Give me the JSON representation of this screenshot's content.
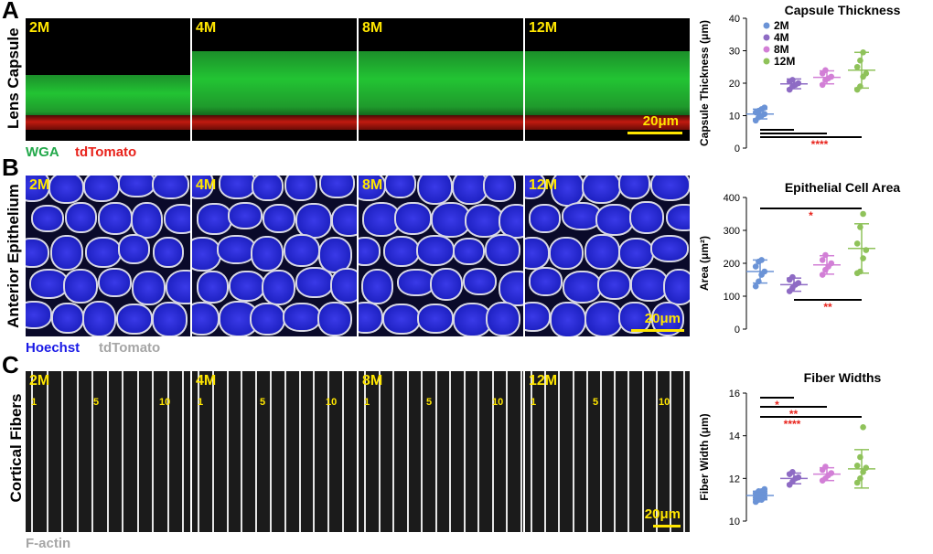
{
  "panels": {
    "A": {
      "letter": "A",
      "row_label": "Lens Capsule",
      "ages": [
        "2M",
        "4M",
        "8M",
        "12M"
      ],
      "scale_bar": "20μm",
      "stain_labels": [
        {
          "text": "WGA",
          "color": "#22a84a"
        },
        {
          "text": "tdTomato",
          "color": "#e8221b"
        }
      ]
    },
    "B": {
      "letter": "B",
      "row_label": "Anterior Epithelium",
      "ages": [
        "2M",
        "4M",
        "8M",
        "12M"
      ],
      "scale_bar": "20μm",
      "stain_labels": [
        {
          "text": "Hoechst",
          "color": "#1a1ae6"
        },
        {
          "text": "tdTomato",
          "color": "#a6a6a6"
        }
      ]
    },
    "C": {
      "letter": "C",
      "row_label": "Cortical Fibers",
      "ages": [
        "2M",
        "4M",
        "8M",
        "12M"
      ],
      "fiber_numbers": [
        "1",
        "5",
        "10"
      ],
      "scale_bar": "20μm",
      "stain_labels": [
        {
          "text": "F-actin",
          "color": "#a6a6a6"
        }
      ]
    }
  },
  "colors": {
    "2M": "#6b93d6",
    "4M": "#8e6bc4",
    "8M": "#d27fd6",
    "12M": "#8fc25a",
    "sig": "#e8221b"
  },
  "chart_data": [
    {
      "type": "scatter",
      "title": "Capsule Thickness",
      "ylabel": "Capsule Thickness (μm)",
      "ylim": [
        0,
        40
      ],
      "yticks": [
        0,
        10,
        20,
        30,
        40
      ],
      "legend": [
        "2M",
        "4M",
        "8M",
        "12M"
      ],
      "legend_position": "top-right",
      "series": [
        {
          "name": "2M",
          "mean": 10.5,
          "sd": 1.5,
          "points": [
            8.5,
            9.5,
            10,
            10.5,
            11,
            11.5,
            12,
            12.5
          ]
        },
        {
          "name": "4M",
          "mean": 19.8,
          "sd": 1.5,
          "points": [
            18,
            19,
            19.5,
            20,
            20.5,
            21
          ]
        },
        {
          "name": "8M",
          "mean": 21.8,
          "sd": 2,
          "points": [
            19.5,
            21,
            21.5,
            22,
            23,
            24
          ]
        },
        {
          "name": "12M",
          "mean": 24,
          "sd": 5.5,
          "points": [
            18,
            19,
            22,
            23,
            25,
            27,
            29.5
          ]
        }
      ],
      "significance": [
        {
          "from": "2M",
          "to": "4M",
          "label": ""
        },
        {
          "from": "2M",
          "to": "8M",
          "label": ""
        },
        {
          "from": "2M",
          "to": "12M",
          "label": "****"
        }
      ]
    },
    {
      "type": "scatter",
      "title": "Epithelial Cell Area",
      "ylabel": "Area (μm²)",
      "ylim": [
        0,
        400
      ],
      "yticks": [
        0,
        100,
        200,
        300,
        400
      ],
      "series": [
        {
          "name": "2M",
          "mean": 175,
          "sd": 35,
          "points": [
            130,
            145,
            165,
            175,
            190,
            205,
            210
          ]
        },
        {
          "name": "4M",
          "mean": 135,
          "sd": 20,
          "points": [
            115,
            125,
            135,
            140,
            150,
            158
          ]
        },
        {
          "name": "8M",
          "mean": 195,
          "sd": 28,
          "points": [
            165,
            180,
            190,
            200,
            210,
            225
          ]
        },
        {
          "name": "12M",
          "mean": 245,
          "sd": 75,
          "points": [
            170,
            175,
            215,
            240,
            260,
            310,
            350
          ]
        }
      ],
      "significance": [
        {
          "from": "2M",
          "to": "12M",
          "label": "*"
        },
        {
          "from": "4M",
          "to": "12M",
          "label": "**"
        }
      ]
    },
    {
      "type": "scatter",
      "title": "Fiber Widths",
      "ylabel": "Fiber Width (μm)",
      "ylim": [
        10,
        16
      ],
      "yticks": [
        10,
        12,
        14,
        16
      ],
      "series": [
        {
          "name": "2M",
          "mean": 11.2,
          "sd": 0.2,
          "points": [
            10.9,
            11.0,
            11.0,
            11.1,
            11.1,
            11.2,
            11.2,
            11.3,
            11.3,
            11.4,
            11.4,
            11.5
          ]
        },
        {
          "name": "4M",
          "mean": 12.0,
          "sd": 0.25,
          "points": [
            11.7,
            11.85,
            12.0,
            12.05,
            12.2,
            12.3
          ]
        },
        {
          "name": "8M",
          "mean": 12.2,
          "sd": 0.3,
          "points": [
            11.9,
            12.0,
            12.15,
            12.25,
            12.4,
            12.55
          ]
        },
        {
          "name": "12M",
          "mean": 12.45,
          "sd": 0.9,
          "points": [
            11.8,
            12.0,
            12.3,
            12.5,
            12.6,
            13.0,
            14.4
          ]
        }
      ],
      "significance": [
        {
          "from": "2M",
          "to": "4M",
          "label": "*"
        },
        {
          "from": "2M",
          "to": "8M",
          "label": "**"
        },
        {
          "from": "2M",
          "to": "12M",
          "label": "****"
        }
      ]
    }
  ]
}
